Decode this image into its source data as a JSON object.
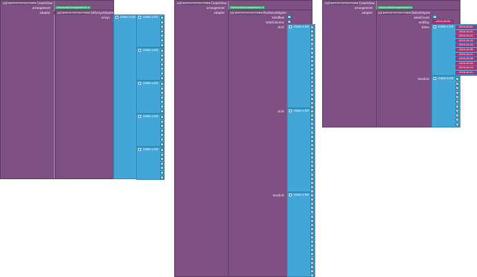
{
  "colors": {
    "procedure_block": "#7d4f82",
    "list_block": "#44a6d6",
    "number_block": "#dbe9f3",
    "arrangement_block": "#4cab7b",
    "date_block": "#c0357a"
  },
  "panel1": {
    "call_label": "call",
    "component_dropdown": "ContributionView1 ▾",
    "method": "CreateView",
    "arrangement_label": "arrangement",
    "arrangement_dropdown": "HorizontalArrangement1 ▾",
    "adapter_label": "adapter",
    "adapter_call_label": "call",
    "adapter_component_dropdown": "ContributionView1 ▾",
    "adapter_method": "2dArraysAdapter",
    "arrays_label": "arrays",
    "outer_list_label": "make a list",
    "inner_list_label": "make a list",
    "inner_lists": [
      {
        "values": [
          "0",
          "1",
          "2",
          "0",
          "3",
          "0",
          "1"
        ]
      },
      {
        "values": [
          "0",
          "1",
          "2",
          "0",
          "3",
          "0",
          "1"
        ]
      },
      {
        "values": [
          "0",
          "1",
          "2",
          "0",
          "3",
          "0",
          "1"
        ]
      },
      {
        "values": [
          "0",
          "1",
          "2",
          "0",
          "3",
          "0",
          "1"
        ]
      },
      {
        "values": [
          "0",
          "1",
          "2",
          "0",
          "3",
          "0",
          "1"
        ]
      }
    ]
  },
  "panel2": {
    "call_label": "call",
    "component_dropdown": "ContributionView1 ▾",
    "method": "CreateView",
    "arrangement_label": "arrangement",
    "arrangement_dropdown": "HorizontalArrangement1 ▾",
    "adapter_label": "adapter",
    "adapter_call_label": "call",
    "adapter_component_dropdown": "ContributionView1 ▾",
    "adapter_method": "PositionsAdapter",
    "total_row_label": "totalRow",
    "total_row_value": "7",
    "total_columns_label": "totalColumns",
    "total_columns_value": "5",
    "xlist_label": "xList",
    "ylist_label": "yList",
    "levellist_label": "levelList",
    "make_list_label": "make a list",
    "x_values": [
      "0",
      "0",
      "1",
      "1",
      "2",
      "2",
      "3",
      "3",
      "4",
      "4",
      "5",
      "5",
      "6",
      "6",
      "0",
      "1",
      "2",
      "3",
      "4",
      "5"
    ],
    "y_values": [
      "0",
      "1",
      "0",
      "1",
      "0",
      "1",
      "0",
      "1",
      "0",
      "1",
      "0",
      "1",
      "0",
      "1",
      "2",
      "2",
      "2",
      "2",
      "2",
      "2"
    ],
    "level_values": [
      "1",
      "2",
      "0",
      "3",
      "1",
      "2",
      "0",
      "4",
      "2",
      "1",
      "3",
      "0",
      "2",
      "1",
      "0",
      "3",
      "2",
      "1",
      "4",
      "0"
    ]
  },
  "panel3": {
    "call_label": "call",
    "component_dropdown": "ContributionView1 ▾",
    "method": "CreateView",
    "arrangement_label": "arrangement",
    "arrangement_dropdown": "HorizontalArrangement2 ▾",
    "adapter_label": "adapter",
    "adapter_call_label": "call",
    "adapter_component_dropdown": "ContributionView1 ▾",
    "adapter_method": "DatesAdapter",
    "week_count_label": "weekCount",
    "week_count_value": "12",
    "end_day_label": "endDay",
    "end_day_value": "2019-10-09",
    "dates_label": "dates",
    "levellist_label": "levelList",
    "make_list_label": "make a list",
    "dates": [
      "2019-10-01",
      "2019-10-02",
      "2019-10-03",
      "2019-10-04",
      "2019-10-05",
      "2019-10-06",
      "2019-10-07",
      "2019-10-08",
      "2019-10-09",
      "2019-10-10",
      "2019-10-11"
    ],
    "level_values": [
      "1",
      "2",
      "3",
      "4",
      "1",
      "2",
      "3",
      "4",
      "1",
      "2",
      "3"
    ]
  }
}
